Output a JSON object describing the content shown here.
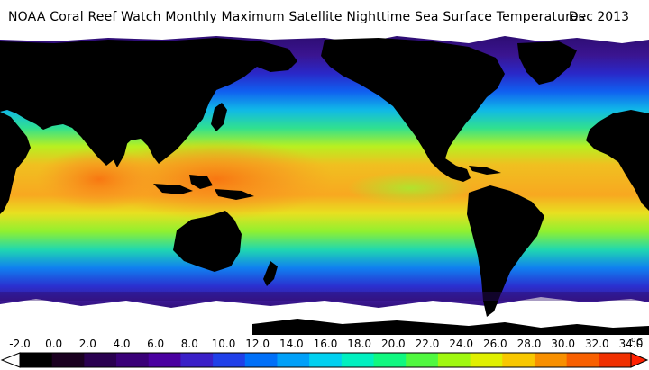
{
  "title": "NOAA Coral Reef Watch Monthly Maximum Satellite Nighttime Sea Surface Temperatures",
  "date": "Dec 2013",
  "colorbar": {
    "ticks": [
      "-2.0",
      "0.0",
      "2.0",
      "4.0",
      "6.0",
      "8.0",
      "10.0",
      "12.0",
      "14.0",
      "16.0",
      "18.0",
      "20.0",
      "22.0",
      "24.0",
      "26.0",
      "28.0",
      "30.0",
      "32.0",
      "34.0"
    ],
    "unit_degree": "o",
    "unit_letter": "C",
    "colors": [
      "#000000",
      "#1a0020",
      "#2a0050",
      "#3a0078",
      "#4a00a0",
      "#3a20c8",
      "#2040e8",
      "#0070f8",
      "#00a0f8",
      "#00d0f0",
      "#00f0c0",
      "#10f880",
      "#50f840",
      "#a0f810",
      "#e0f000",
      "#f8c800",
      "#f89000",
      "#f86000",
      "#f03000"
    ],
    "below_color": "#ffffff",
    "above_color": "#ff2000"
  },
  "map_colors": {
    "land": "#000000",
    "ice": "#ffffff",
    "cold": "#3a1490",
    "cool": "#1058f0",
    "mild": "#10c8e0",
    "temperate": "#30e890",
    "warm": "#d8f020",
    "hot": "#f8b020",
    "hottest": "#f87818"
  }
}
